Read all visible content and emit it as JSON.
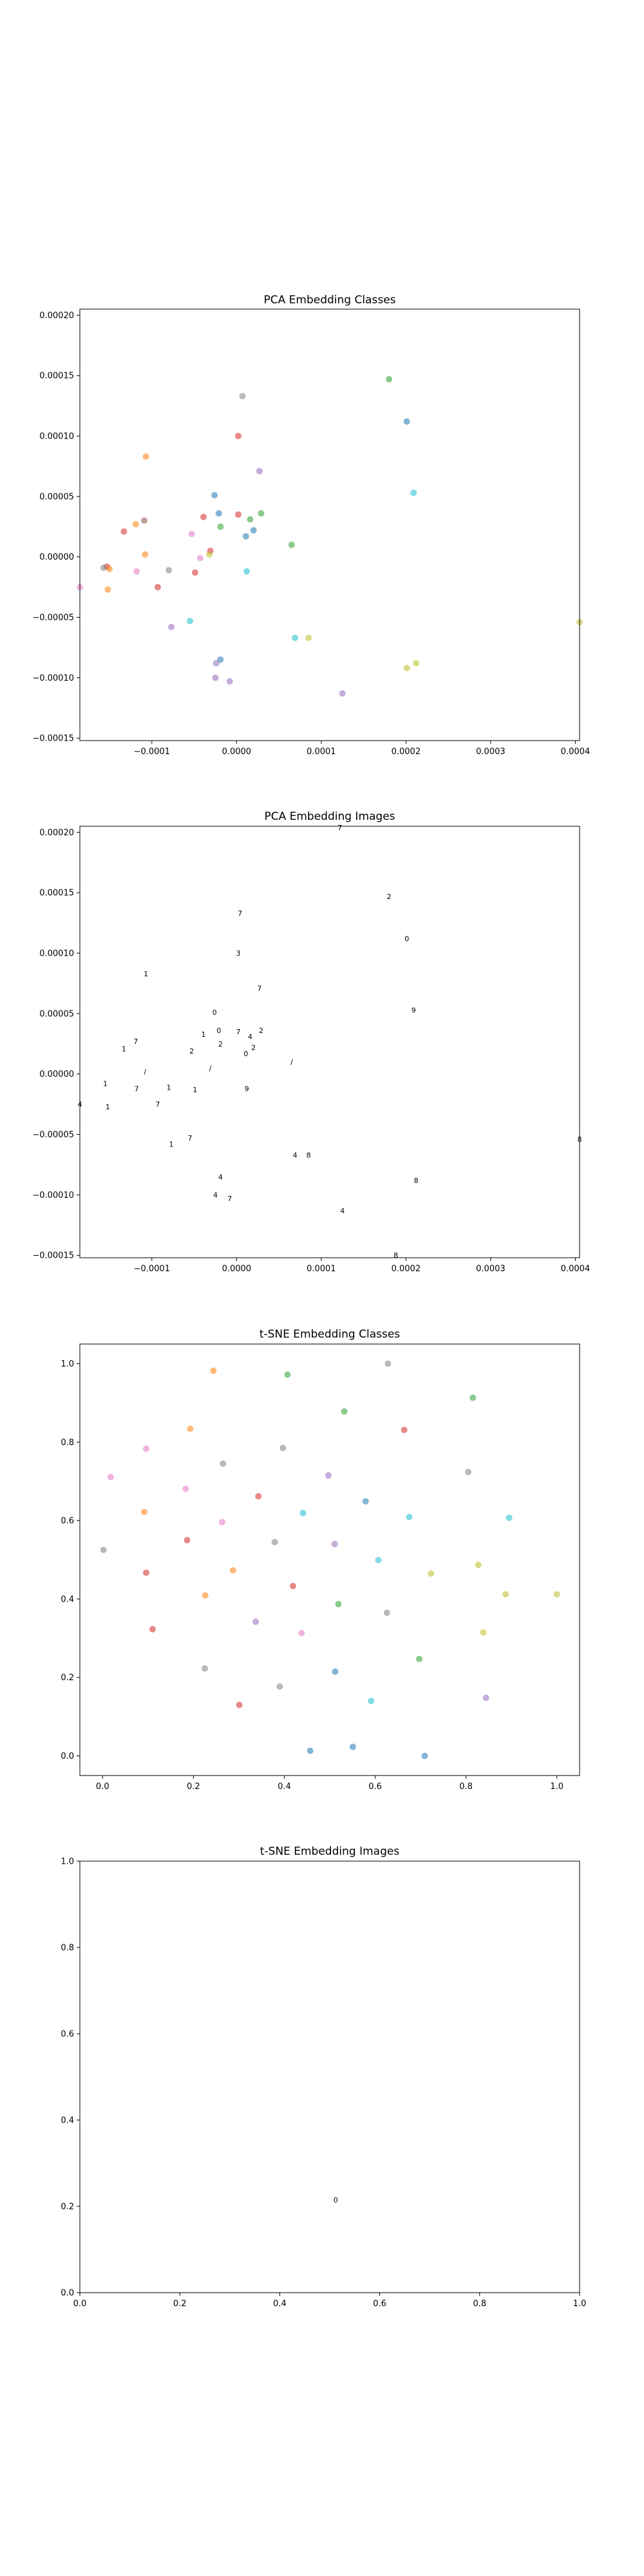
{
  "chart_data": [
    {
      "id": "pca_classes",
      "type": "scatter",
      "title": "PCA Embedding Classes",
      "xlim": [
        -0.000185,
        0.000405
      ],
      "ylim": [
        -0.000152,
        0.000205
      ],
      "xticks": [
        -0.0001,
        0.0,
        0.0001,
        0.0002,
        0.0003,
        0.0004
      ],
      "xtick_labels": [
        "−0.0001",
        "0.0000",
        "0.0001",
        "0.0002",
        "0.0003",
        "0.0004"
      ],
      "yticks": [
        -0.00015,
        -0.0001,
        -5e-05,
        0.0,
        5e-05,
        0.0001,
        0.00015,
        0.0002
      ],
      "ytick_labels": [
        "−0.00015",
        "−0.00010",
        "−0.00005",
        "0.00000",
        "0.00005",
        "0.00010",
        "0.00015",
        "0.00020"
      ],
      "points": [
        [
          0.00018,
          0.000147,
          "#2ca02c"
        ],
        [
          0.000201,
          0.000112,
          "#1f77b4"
        ],
        [
          7e-06,
          0.000133,
          "#7f7f7f"
        ],
        [
          2e-06,
          0.0001,
          "#d62728"
        ],
        [
          -0.000107,
          8.3e-05,
          "#ff7f0e"
        ],
        [
          2.7e-05,
          7.1e-05,
          "#9467bd"
        ],
        [
          0.000209,
          5.3e-05,
          "#17becf"
        ],
        [
          -2.6e-05,
          5.1e-05,
          "#1f77b4"
        ],
        [
          -2.1e-05,
          3.6e-05,
          "#1f77b4"
        ],
        [
          -3.9e-05,
          3.3e-05,
          "#d62728"
        ],
        [
          2e-06,
          3.5e-05,
          "#d62728"
        ],
        [
          2.9e-05,
          3.6e-05,
          "#2ca02c"
        ],
        [
          1.6e-05,
          3.1e-05,
          "#2ca02c"
        ],
        [
          -1.9e-05,
          2.5e-05,
          "#2ca02c"
        ],
        [
          -0.000109,
          3e-05,
          "#8c564b"
        ],
        [
          -0.000119,
          2.7e-05,
          "#ff7f0e"
        ],
        [
          -0.000133,
          2.1e-05,
          "#d62728"
        ],
        [
          -5.3e-05,
          1.9e-05,
          "#e377c2"
        ],
        [
          2e-05,
          2.2e-05,
          "#1f77b4"
        ],
        [
          1.1e-05,
          1.7e-05,
          "#1f77b4"
        ],
        [
          6.5e-05,
          1e-05,
          "#2ca02c"
        ],
        [
          -3.1e-05,
          5e-06,
          "#d62728"
        ],
        [
          -3.2e-05,
          2e-06,
          "#bcbd22"
        ],
        [
          -4.3e-05,
          -1e-06,
          "#e377c2"
        ],
        [
          -0.000108,
          2e-06,
          "#ff7f0e"
        ],
        [
          -0.000153,
          -8e-06,
          "#d62728"
        ],
        [
          -0.000157,
          -9e-06,
          "#7f7f7f"
        ],
        [
          -0.00015,
          -1e-05,
          "#ff7f0e"
        ],
        [
          -8e-05,
          -1.1e-05,
          "#7f7f7f"
        ],
        [
          -0.000118,
          -1.2e-05,
          "#e377c2"
        ],
        [
          -4.9e-05,
          -1.3e-05,
          "#d62728"
        ],
        [
          1.2e-05,
          -1.2e-05,
          "#17becf"
        ],
        [
          -9.3e-05,
          -2.5e-05,
          "#d62728"
        ],
        [
          -0.000152,
          -2.7e-05,
          "#ff7f0e"
        ],
        [
          -0.000185,
          -2.5e-05,
          "#e377c2"
        ],
        [
          -5.5e-05,
          -5.3e-05,
          "#17becf"
        ],
        [
          -7.7e-05,
          -5.8e-05,
          "#9467bd"
        ],
        [
          0.000405,
          -5.4e-05,
          "#bcbd22"
        ],
        [
          6.9e-05,
          -6.7e-05,
          "#17becf"
        ],
        [
          8.5e-05,
          -6.7e-05,
          "#bcbd22"
        ],
        [
          -1.9e-05,
          -8.5e-05,
          "#1f77b4"
        ],
        [
          -2.4e-05,
          -8.8e-05,
          "#9467bd"
        ],
        [
          0.000212,
          -8.8e-05,
          "#bcbd22"
        ],
        [
          0.000201,
          -9.2e-05,
          "#bcbd22"
        ],
        [
          -2.5e-05,
          -0.0001,
          "#9467bd"
        ],
        [
          -8e-06,
          -0.000103,
          "#9467bd"
        ],
        [
          0.000125,
          -0.000113,
          "#9467bd"
        ]
      ]
    },
    {
      "id": "pca_images",
      "type": "scatter",
      "title": "PCA Embedding Images",
      "xlim": [
        -0.000185,
        0.000405
      ],
      "ylim": [
        -0.000152,
        0.000205
      ],
      "xticks": [
        -0.0001,
        0.0,
        0.0001,
        0.0002,
        0.0003,
        0.0004
      ],
      "xtick_labels": [
        "−0.0001",
        "0.0000",
        "0.0001",
        "0.0002",
        "0.0003",
        "0.0004"
      ],
      "yticks": [
        -0.00015,
        -0.0001,
        -5e-05,
        0.0,
        5e-05,
        0.0001,
        0.00015,
        0.0002
      ],
      "ytick_labels": [
        "−0.00015",
        "−0.00010",
        "−0.00005",
        "0.00000",
        "0.00005",
        "0.00010",
        "0.00015",
        "0.00020"
      ],
      "points": [
        [
          0.000122,
          0.000204,
          "7"
        ],
        [
          0.00018,
          0.000147,
          "2"
        ],
        [
          0.000201,
          0.000112,
          "0"
        ],
        [
          4e-06,
          0.000133,
          "7"
        ],
        [
          2e-06,
          0.0001,
          "3"
        ],
        [
          -0.000107,
          8.3e-05,
          "1"
        ],
        [
          2.7e-05,
          7.1e-05,
          "7"
        ],
        [
          0.000209,
          5.3e-05,
          "9"
        ],
        [
          -2.6e-05,
          5.1e-05,
          "0"
        ],
        [
          -2.1e-05,
          3.6e-05,
          "0"
        ],
        [
          -3.9e-05,
          3.3e-05,
          "1"
        ],
        [
          2e-06,
          3.5e-05,
          "7"
        ],
        [
          2.9e-05,
          3.6e-05,
          "2"
        ],
        [
          1.6e-05,
          3.1e-05,
          "4"
        ],
        [
          -1.9e-05,
          2.5e-05,
          "2"
        ],
        [
          -0.000119,
          2.7e-05,
          "7"
        ],
        [
          -0.000133,
          2.1e-05,
          "1"
        ],
        [
          -5.3e-05,
          1.9e-05,
          "2"
        ],
        [
          2e-05,
          2.2e-05,
          "2"
        ],
        [
          1.1e-05,
          1.7e-05,
          "0"
        ],
        [
          6.5e-05,
          1e-05,
          "/"
        ],
        [
          -3.1e-05,
          5e-06,
          "/"
        ],
        [
          -0.000108,
          2e-06,
          "/"
        ],
        [
          -0.000155,
          -8e-06,
          "1"
        ],
        [
          -8e-05,
          -1.1e-05,
          "1"
        ],
        [
          -0.000118,
          -1.2e-05,
          "7"
        ],
        [
          -4.9e-05,
          -1.3e-05,
          "1"
        ],
        [
          1.2e-05,
          -1.2e-05,
          "9"
        ],
        [
          -9.3e-05,
          -2.5e-05,
          "7"
        ],
        [
          -0.000152,
          -2.7e-05,
          "1"
        ],
        [
          -0.000185,
          -2.5e-05,
          "4"
        ],
        [
          -5.5e-05,
          -5.3e-05,
          "7"
        ],
        [
          -7.7e-05,
          -5.8e-05,
          "1"
        ],
        [
          0.000405,
          -5.4e-05,
          "8"
        ],
        [
          6.9e-05,
          -6.7e-05,
          "4"
        ],
        [
          8.5e-05,
          -6.7e-05,
          "8"
        ],
        [
          -1.9e-05,
          -8.5e-05,
          "4"
        ],
        [
          0.000212,
          -8.8e-05,
          "8"
        ],
        [
          -2.5e-05,
          -0.0001,
          "4"
        ],
        [
          -8e-06,
          -0.000103,
          "7"
        ],
        [
          0.000125,
          -0.000113,
          "4"
        ],
        [
          0.000188,
          -0.00015,
          "8"
        ]
      ]
    },
    {
      "id": "tsne_classes",
      "type": "scatter",
      "title": "t-SNE Embedding Classes",
      "xlim": [
        -0.05,
        1.05
      ],
      "ylim": [
        -0.05,
        1.05
      ],
      "xticks": [
        0.0,
        0.2,
        0.4,
        0.6,
        0.8,
        1.0
      ],
      "xtick_labels": [
        "0.0",
        "0.2",
        "0.4",
        "0.6",
        "0.8",
        "1.0"
      ],
      "yticks": [
        0.0,
        0.2,
        0.4,
        0.6,
        0.8,
        1.0
      ],
      "ytick_labels": [
        "0.0",
        "0.2",
        "0.4",
        "0.6",
        "0.8",
        "1.0"
      ],
      "points": [
        [
          0.244,
          0.982,
          "#ff7f0e"
        ],
        [
          0.407,
          0.972,
          "#2ca02c"
        ],
        [
          0.628,
          1.0,
          "#7f7f7f"
        ],
        [
          0.532,
          0.878,
          "#2ca02c"
        ],
        [
          0.815,
          0.913,
          "#2ca02c"
        ],
        [
          0.193,
          0.834,
          "#ff7f0e"
        ],
        [
          0.664,
          0.831,
          "#d62728"
        ],
        [
          0.096,
          0.783,
          "#e377c2"
        ],
        [
          0.397,
          0.785,
          "#7f7f7f"
        ],
        [
          0.265,
          0.745,
          "#7f7f7f"
        ],
        [
          0.018,
          0.711,
          "#e377c2"
        ],
        [
          0.805,
          0.724,
          "#7f7f7f"
        ],
        [
          0.497,
          0.715,
          "#9467bd"
        ],
        [
          0.183,
          0.681,
          "#e377c2"
        ],
        [
          0.343,
          0.662,
          "#d62728"
        ],
        [
          0.579,
          0.649,
          "#1f77b4"
        ],
        [
          0.441,
          0.619,
          "#17becf"
        ],
        [
          0.092,
          0.622,
          "#ff7f0e"
        ],
        [
          0.263,
          0.596,
          "#e377c2"
        ],
        [
          0.675,
          0.609,
          "#17becf"
        ],
        [
          0.895,
          0.607,
          "#17becf"
        ],
        [
          0.186,
          0.55,
          "#d62728"
        ],
        [
          0.379,
          0.545,
          "#7f7f7f"
        ],
        [
          0.511,
          0.54,
          "#9467bd"
        ],
        [
          0.002,
          0.525,
          "#7f7f7f"
        ],
        [
          0.607,
          0.499,
          "#17becf"
        ],
        [
          0.827,
          0.487,
          "#bcbd22"
        ],
        [
          0.096,
          0.467,
          "#d62728"
        ],
        [
          0.287,
          0.473,
          "#ff7f0e"
        ],
        [
          0.723,
          0.465,
          "#bcbd22"
        ],
        [
          0.419,
          0.433,
          "#d62728"
        ],
        [
          0.226,
          0.409,
          "#ff7f0e"
        ],
        [
          0.887,
          0.412,
          "#bcbd22"
        ],
        [
          1.0,
          0.412,
          "#bcbd22"
        ],
        [
          0.519,
          0.387,
          "#2ca02c"
        ],
        [
          0.626,
          0.365,
          "#7f7f7f"
        ],
        [
          0.337,
          0.342,
          "#9467bd"
        ],
        [
          0.11,
          0.323,
          "#d62728"
        ],
        [
          0.438,
          0.313,
          "#e377c2"
        ],
        [
          0.838,
          0.315,
          "#bcbd22"
        ],
        [
          0.697,
          0.247,
          "#2ca02c"
        ],
        [
          0.225,
          0.223,
          "#7f7f7f"
        ],
        [
          0.512,
          0.215,
          "#1f77b4"
        ],
        [
          0.39,
          0.177,
          "#7f7f7f"
        ],
        [
          0.844,
          0.148,
          "#9467bd"
        ],
        [
          0.591,
          0.14,
          "#17becf"
        ],
        [
          0.301,
          0.13,
          "#d62728"
        ],
        [
          0.457,
          0.013,
          "#1f77b4"
        ],
        [
          0.551,
          0.023,
          "#1f77b4"
        ],
        [
          0.709,
          0.0,
          "#1f77b4"
        ]
      ]
    },
    {
      "id": "tsne_images",
      "type": "scatter",
      "title": "t-SNE Embedding Images",
      "xlim": [
        0.0,
        1.0
      ],
      "ylim": [
        0.0,
        1.0
      ],
      "xticks": [
        0.0,
        0.2,
        0.4,
        0.6,
        0.8,
        1.0
      ],
      "xtick_labels": [
        "0.0",
        "0.2",
        "0.4",
        "0.6",
        "0.8",
        "1.0"
      ],
      "yticks": [
        0.0,
        0.2,
        0.4,
        0.6,
        0.8,
        1.0
      ],
      "ytick_labels": [
        "0.0",
        "0.2",
        "0.4",
        "0.6",
        "0.8",
        "1.0"
      ],
      "points": [
        [
          0.512,
          0.215,
          "0"
        ]
      ]
    }
  ]
}
